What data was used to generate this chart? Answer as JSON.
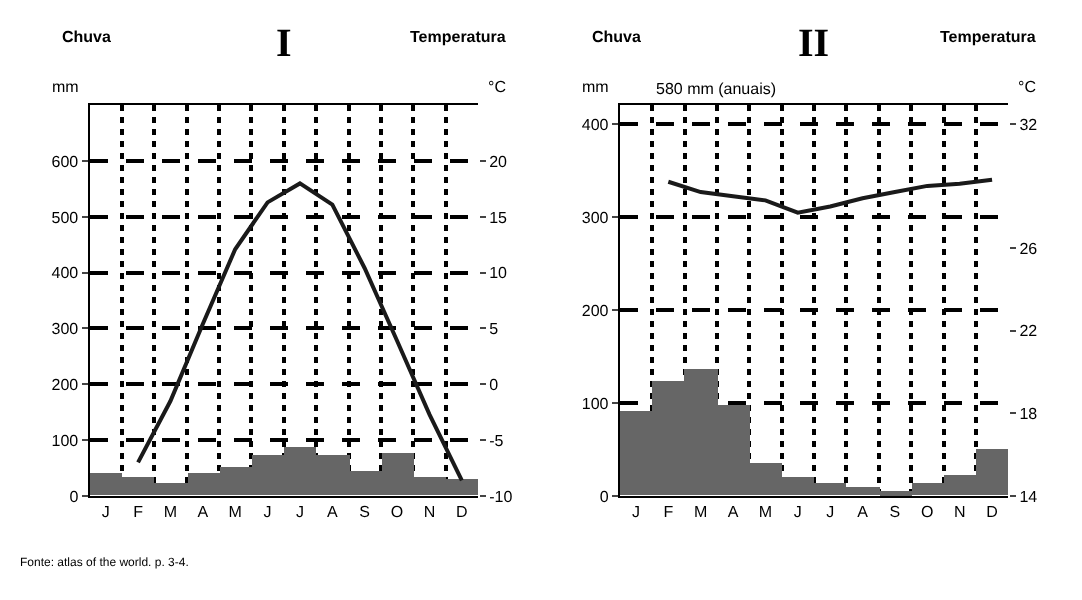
{
  "chart_data": [
    {
      "type": "bar",
      "title": "I",
      "ylabel": "Chuva",
      "y2label": "Temperatura",
      "annotations": [
        "mm",
        "°C",
        "Fonte: atlas of the world. p. 3-4."
      ],
      "categories": [
        "J",
        "F",
        "M",
        "A",
        "M",
        "J",
        "J",
        "A",
        "S",
        "O",
        "N",
        "D"
      ],
      "ylim": [
        0,
        700
      ],
      "yticks": [
        0,
        100,
        200,
        300,
        400,
        500,
        600
      ],
      "y2lim": [
        -10,
        25
      ],
      "y2ticks": [
        -10,
        -5,
        0,
        5,
        10,
        15,
        20
      ],
      "series": [
        {
          "color": "#666666",
          "values": [
            39,
            32,
            22,
            42,
            51,
            72,
            87,
            72,
            45,
            76,
            34,
            28
          ]
        },
        {
          "type": "line",
          "axis": "y2",
          "color": "#1a1a1a",
          "values": [
            null,
            -7.0,
            -1.5,
            5.4,
            12.1,
            16.3,
            18.0,
            16.1,
            10.4,
            3.9,
            -2.7,
            -8.6
          ]
        }
      ],
      "grid": true
    },
    {
      "type": "bar",
      "title": "II",
      "ylabel": "Chuva",
      "y2label": "Temperatura",
      "annotations": [
        "mm",
        "°C",
        "580 mm (anuais)"
      ],
      "categories": [
        "J",
        "F",
        "M",
        "A",
        "M",
        "J",
        "J",
        "A",
        "S",
        "O",
        "N",
        "D"
      ],
      "ylim": [
        0,
        420
      ],
      "yticks": [
        0,
        100,
        200,
        300,
        400
      ],
      "y2lim": [
        14,
        32.9
      ],
      "y2ticks": [
        14,
        18,
        22,
        26,
        32
      ],
      "series": [
        {
          "color": "#666666",
          "values": [
            90,
            124,
            136,
            97,
            34,
            19,
            14,
            9,
            4,
            14,
            22,
            51
          ]
        },
        {
          "type": "line",
          "axis": "y2",
          "color": "#1a1a1a",
          "values": [
            null,
            29.2,
            28.7,
            28.5,
            28.3,
            27.7,
            28.0,
            28.4,
            28.7,
            29.0,
            29.1,
            29.3
          ]
        }
      ],
      "grid": true
    }
  ]
}
